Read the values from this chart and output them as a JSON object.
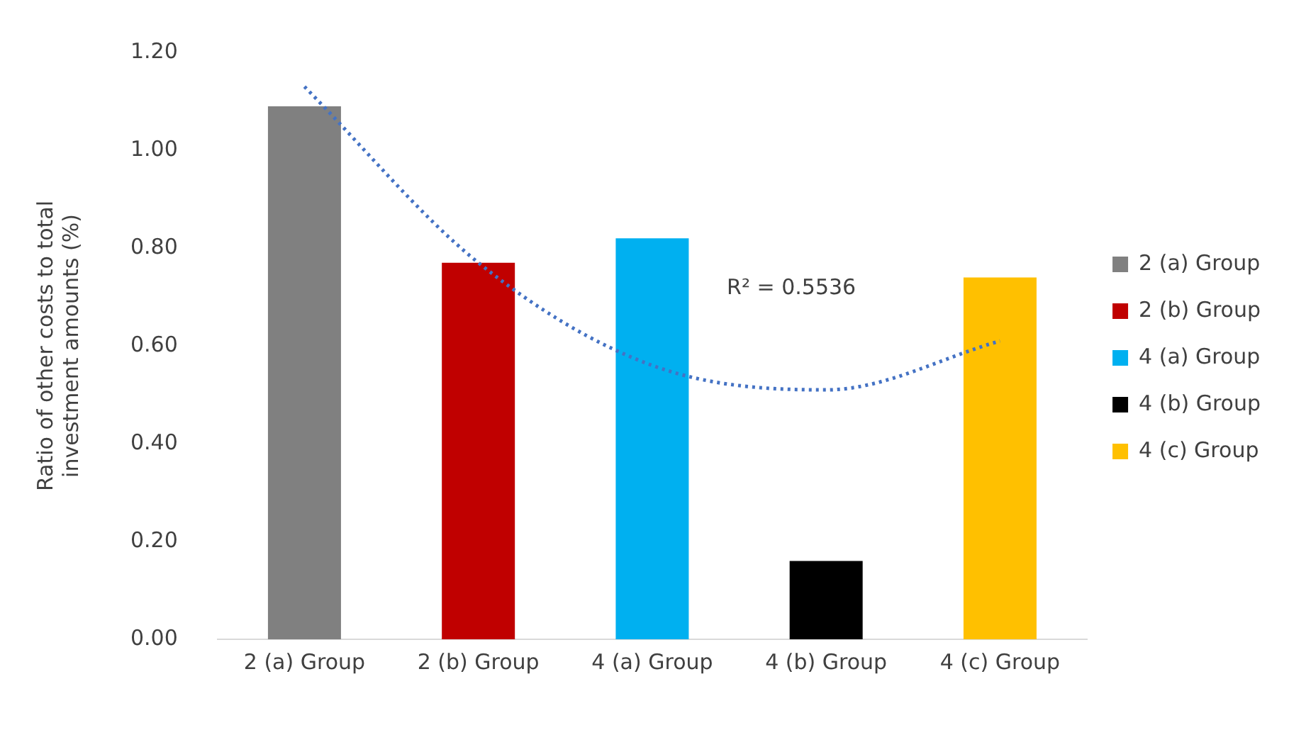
{
  "chart_data": {
    "type": "bar",
    "ylabel": "Ratio of other costs to total investment amounts (%)",
    "categories": [
      "2 (a) Group",
      "2 (b) Group",
      "4 (a) Group",
      "4 (b) Group",
      "4 (c) Group"
    ],
    "series": [
      {
        "name": "2 (a) Group",
        "color": "#808080",
        "values": [
          1.09,
          null,
          null,
          null,
          null
        ]
      },
      {
        "name": "2 (b) Group",
        "color": "#c00000",
        "values": [
          null,
          0.77,
          null,
          null,
          null
        ]
      },
      {
        "name": "4 (a) Group",
        "color": "#00b0f0",
        "values": [
          null,
          null,
          0.82,
          null,
          null
        ]
      },
      {
        "name": "4 (b) Group",
        "color": "#000000",
        "values": [
          null,
          null,
          null,
          0.16,
          null
        ]
      },
      {
        "name": "4 (c) Group",
        "color": "#ffc000",
        "values": [
          null,
          null,
          null,
          null,
          0.74
        ]
      },
      {
        "type": "line",
        "x": [
          "2 (a) Group",
          "2 (b) Group",
          "4 (a) Group",
          "4 (b) Group",
          "4 (c) Group"
        ],
        "values": [
          1.13,
          0.77,
          0.56,
          0.51,
          0.61
        ],
        "color": "#4472c4",
        "line_style": "dotted",
        "marker": "none"
      }
    ],
    "ylim": [
      0,
      1.2
    ],
    "yticks": [
      {
        "value": 0,
        "label": "0.00"
      },
      {
        "value": 0.2,
        "label": "0.20"
      },
      {
        "value": 0.4,
        "label": "0.40"
      },
      {
        "value": 0.6,
        "label": "0.60"
      },
      {
        "value": 0.8,
        "label": "0.80"
      },
      {
        "value": 1,
        "label": "1.00"
      },
      {
        "value": 1.2,
        "label": "1.20"
      }
    ],
    "grid": false,
    "legend": "right",
    "annotations": [
      "R² = 0.5536"
    ]
  }
}
